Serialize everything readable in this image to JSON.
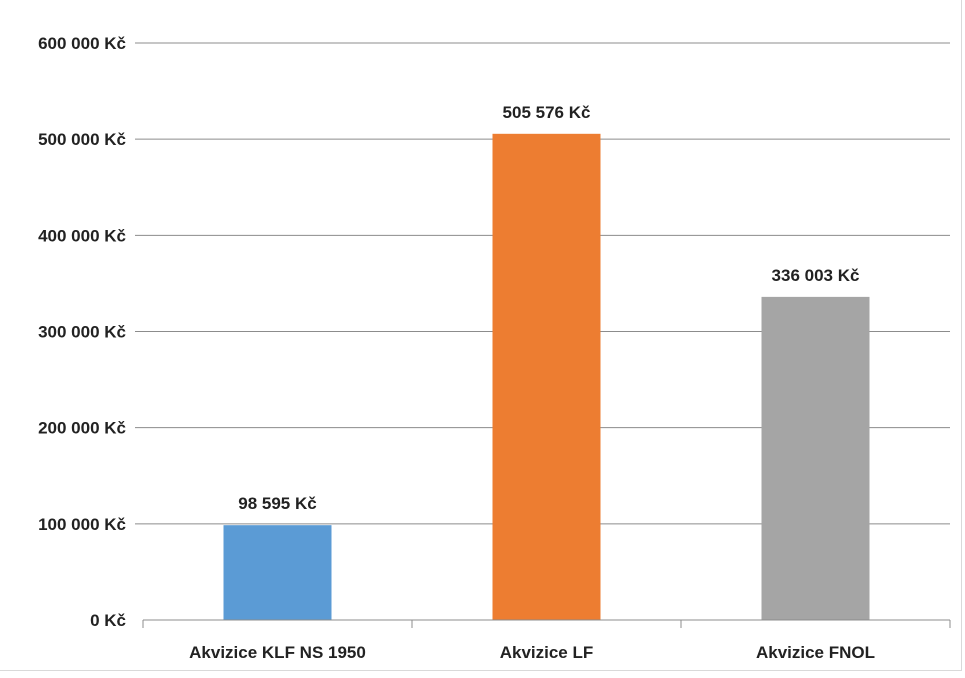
{
  "chart_data": {
    "type": "bar",
    "categories": [
      "Akvizice KLF NS 1950",
      "Akvizice LF",
      "Akvizice FNOL"
    ],
    "values": [
      98595,
      505576,
      336003
    ],
    "data_labels": [
      "98 595 Kč",
      "505 576 Kč",
      "336 003 Kč"
    ],
    "colors": [
      "#5b9bd5",
      "#ed7d31",
      "#a5a5a5"
    ],
    "title": "",
    "xlabel": "",
    "ylabel": "",
    "ylim": [
      0,
      600000
    ],
    "y_ticks": [
      0,
      100000,
      200000,
      300000,
      400000,
      500000,
      600000
    ],
    "y_tick_labels": [
      "0 Kč",
      "100 000 Kč",
      "200 000 Kč",
      "300 000 Kč",
      "400 000 Kč",
      "500 000 Kč",
      "600 000 Kč"
    ],
    "grid": true,
    "gridline_color": "#8c8c8c",
    "legend": "none"
  }
}
